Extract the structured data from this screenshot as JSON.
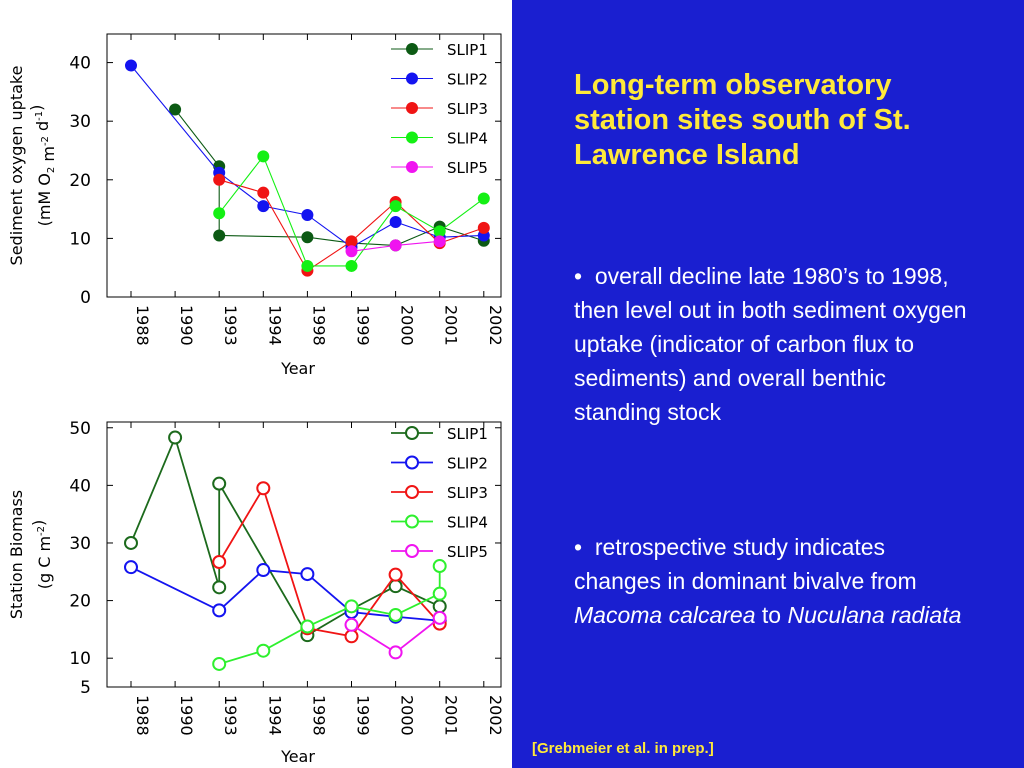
{
  "slide": {
    "title": "Long-term observatory station sites south of St. Lawrence Island",
    "bullets": [
      {
        "marker": "•",
        "text": "overall decline late 1980’s to 1998, then level out in both sediment oxygen uptake (indicator of carbon flux to sediments) and overall benthic standing stock"
      },
      {
        "marker": "•",
        "text_before": "retrospective study indicates changes in dominant bivalve from ",
        "species1": "Macoma calcarea",
        "text_middle": " to ",
        "species2": "Nuculana radiata"
      }
    ],
    "citation": "[Grebmeier et al. in prep.]"
  },
  "chart_data": [
    {
      "type": "line",
      "ylabel_line1": "Sediment oxygen uptake",
      "ylabel_line2": "(mM O2 m-2 d-1)",
      "xlabel": "Year",
      "categories": [
        "1988",
        "1990",
        "1993",
        "1994",
        "1998",
        "1999",
        "2000",
        "2001",
        "2002"
      ],
      "yticks": [
        0,
        10,
        20,
        30,
        40
      ],
      "ylim": [
        0,
        43
      ],
      "marker": "filled",
      "legend_position": "top-right",
      "series": [
        {
          "name": "SLIP1",
          "color": "#0c5a14",
          "points": [
            [
              1,
              32
            ],
            [
              2,
              22.3
            ],
            [
              2,
              10.5
            ],
            [
              4,
              10.2
            ],
            [
              5,
              9.2
            ],
            [
              6,
              8.8
            ],
            [
              7,
              12
            ],
            [
              8,
              9.6
            ]
          ]
        },
        {
          "name": "SLIP2",
          "color": "#1414f0",
          "points": [
            [
              0,
              39.5
            ],
            [
              2,
              21.2
            ],
            [
              3,
              15.5
            ],
            [
              4,
              14
            ],
            [
              5,
              8.5
            ],
            [
              6,
              12.8
            ],
            [
              7,
              10.2
            ],
            [
              8,
              10.5
            ]
          ]
        },
        {
          "name": "SLIP3",
          "color": "#f01414",
          "points": [
            [
              2,
              20
            ],
            [
              3,
              17.8
            ],
            [
              4,
              4.5
            ],
            [
              5,
              9.5
            ],
            [
              6,
              16.2
            ],
            [
              7,
              9.2
            ],
            [
              8,
              11.8
            ]
          ]
        },
        {
          "name": "SLIP4",
          "color": "#14f014",
          "points": [
            [
              2,
              14.3
            ],
            [
              3,
              24
            ],
            [
              4,
              5.3
            ],
            [
              5,
              5.3
            ],
            [
              6,
              15.5
            ],
            [
              7,
              11.2
            ],
            [
              8,
              16.8
            ]
          ]
        },
        {
          "name": "SLIP5",
          "color": "#f014f0",
          "points": [
            [
              5,
              7.8
            ],
            [
              6,
              8.8
            ],
            [
              7,
              9.5
            ]
          ]
        }
      ]
    },
    {
      "type": "line",
      "ylabel_line1": "Station Biomass",
      "ylabel_line2": "(g  C m-2)",
      "xlabel": "Year",
      "categories": [
        "1988",
        "1990",
        "1993",
        "1994",
        "1998",
        "1999",
        "2000",
        "2001",
        "2002"
      ],
      "yticks": [
        5,
        10,
        20,
        30,
        40,
        50
      ],
      "ylim": [
        5,
        51
      ],
      "marker": "open",
      "legend_position": "top-right",
      "series": [
        {
          "name": "SLIP1",
          "color": "#1c6a1c",
          "points": [
            [
              0,
              30
            ],
            [
              1,
              48.3
            ],
            [
              2,
              22.3
            ],
            [
              2,
              40.3
            ],
            [
              4,
              14
            ],
            [
              5,
              18.5
            ],
            [
              6,
              22.5
            ],
            [
              7,
              19
            ]
          ]
        },
        {
          "name": "SLIP2",
          "color": "#1414f0",
          "points": [
            [
              0,
              25.8
            ],
            [
              2,
              18.3
            ],
            [
              3,
              25.3
            ],
            [
              4,
              24.6
            ],
            [
              5,
              18
            ],
            [
              6,
              17.2
            ],
            [
              7,
              16.5
            ]
          ]
        },
        {
          "name": "SLIP3",
          "color": "#f01414",
          "points": [
            [
              2,
              26.7
            ],
            [
              3,
              39.5
            ],
            [
              4,
              15.2
            ],
            [
              5,
              13.8
            ],
            [
              6,
              24.5
            ],
            [
              7,
              16
            ]
          ]
        },
        {
          "name": "SLIP4",
          "color": "#2ef02e",
          "points": [
            [
              2,
              9
            ],
            [
              3,
              11.3
            ],
            [
              4,
              15.5
            ],
            [
              5,
              19
            ],
            [
              6,
              17.5
            ],
            [
              7,
              21.2
            ],
            [
              7,
              26
            ]
          ]
        },
        {
          "name": "SLIP5",
          "color": "#f014f0",
          "points": [
            [
              5,
              15.8
            ],
            [
              6,
              11
            ],
            [
              7,
              17
            ]
          ]
        }
      ]
    }
  ]
}
